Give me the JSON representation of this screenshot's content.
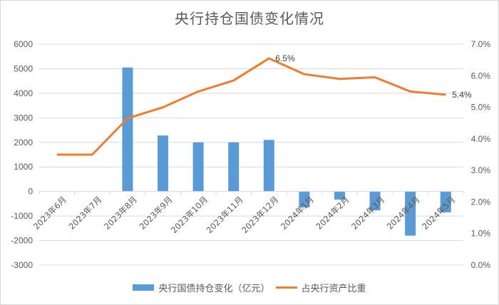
{
  "chart_data": {
    "type": "bar+line",
    "title": "央行持仓国债变化情况",
    "categories": [
      "2023年6月",
      "2023年7月",
      "2023年8月",
      "2023年9月",
      "2023年10月",
      "2023年11月",
      "2023年12月",
      "2024年1月",
      "2024年2月",
      "2024年3月",
      "2024年4月",
      "2024年5月"
    ],
    "series": [
      {
        "name": "央行国债持仓变化（亿元）",
        "type": "bar",
        "axis": "left",
        "color": "#5b9bd5",
        "values": [
          0,
          0,
          5050,
          2280,
          2000,
          2000,
          2100,
          -650,
          -330,
          -770,
          -1800,
          -850
        ]
      },
      {
        "name": "占央行资产比重",
        "type": "line",
        "axis": "right",
        "color": "#ed7d31",
        "values": [
          3.5,
          3.5,
          4.65,
          5.0,
          5.5,
          5.85,
          6.55,
          6.05,
          5.9,
          5.95,
          5.5,
          5.4
        ]
      }
    ],
    "left_axis": {
      "min": -3000,
      "max": 6000,
      "step": 1000,
      "ticks": [
        "6000",
        "5000",
        "4000",
        "3000",
        "2000",
        "1000",
        "0",
        "-1000",
        "-2000",
        "-3000"
      ]
    },
    "right_axis": {
      "min": 0,
      "max": 7,
      "step": 1,
      "ticks": [
        "7.0%",
        "6.0%",
        "5.0%",
        "4.0%",
        "3.0%",
        "2.0%",
        "1.0%",
        "0.0%"
      ]
    },
    "annotations": [
      {
        "category": "2023年12月",
        "text": "6.5%"
      },
      {
        "category": "2024年5月",
        "text": "5.4%"
      }
    ],
    "grid": true,
    "legend_position": "bottom"
  },
  "legend": {
    "bar_label": "央行国债持仓变化（亿元）",
    "line_label": "占央行资产比重"
  }
}
